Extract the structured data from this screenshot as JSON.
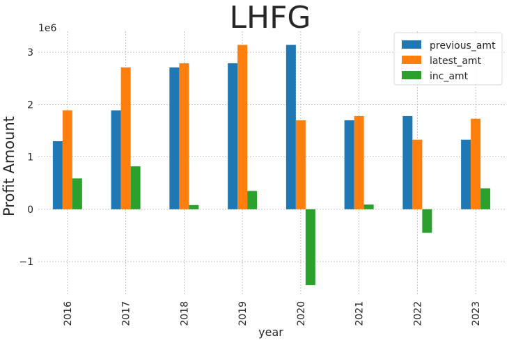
{
  "chart_data": {
    "type": "bar",
    "title": "LHFG",
    "xlabel": "year",
    "ylabel": "Profit Amount",
    "y_scale_label": "1e6",
    "categories": [
      "2016",
      "2017",
      "2018",
      "2019",
      "2020",
      "2021",
      "2022",
      "2023"
    ],
    "series": [
      {
        "name": "previous_amt",
        "color": "#1f77b4",
        "values": [
          1300000,
          1890000,
          2710000,
          2790000,
          3140000,
          1700000,
          1780000,
          1330000
        ]
      },
      {
        "name": "latest_amt",
        "color": "#ff7f0e",
        "values": [
          1890000,
          2710000,
          2790000,
          3140000,
          1700000,
          1780000,
          1330000,
          1730000
        ]
      },
      {
        "name": "inc_amt",
        "color": "#2ca02c",
        "values": [
          590000,
          820000,
          80000,
          350000,
          -1450000,
          90000,
          -450000,
          400000
        ]
      }
    ],
    "ylim": [
      -1650000,
      3400000
    ],
    "yticks": [
      -1000000,
      0,
      1000000,
      2000000,
      3000000
    ],
    "ytick_labels": [
      "−1",
      "0",
      "1",
      "2",
      "3"
    ],
    "grid": true,
    "legend_position": "top-right"
  }
}
